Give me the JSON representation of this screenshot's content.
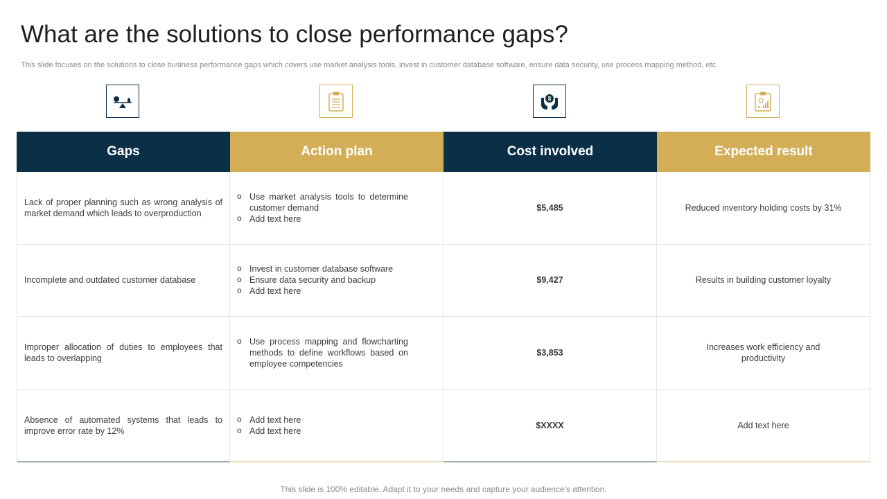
{
  "title": "What are the solutions to close performance gaps?",
  "subtitle": "This slide focuses on the solutions to close business performance gaps which covers use market analysis tools, invest in customer database software, ensure data security, use process mapping method, etc.",
  "icons": [
    "balance-scale-icon",
    "clipboard-icon",
    "hands-holding-coin-icon",
    "chart-report-icon"
  ],
  "headers": [
    "Gaps",
    "Action plan",
    "Cost involved",
    "Expected result"
  ],
  "colors": {
    "navy": "#0b2f46",
    "gold": "#d4ae57"
  },
  "rows": [
    {
      "gap": "Lack of proper planning such as wrong analysis of market demand which leads to overproduction",
      "actions": [
        "Use market analysis tools to determine customer demand",
        "Add text here"
      ],
      "cost": "$5,485",
      "result": "Reduced inventory holding costs by 31%"
    },
    {
      "gap": "Incomplete and outdated customer database",
      "actions": [
        "Invest in customer database software",
        "Ensure data security and backup",
        "Add text here"
      ],
      "cost": "$9,427",
      "result": "Results in building customer loyalty"
    },
    {
      "gap": "Improper allocation of duties to employees that leads to overlapping",
      "actions": [
        "Use process mapping and flowcharting methods to define workflows based on employee competencies"
      ],
      "cost": "$3,853",
      "result": "Increases work efficiency and productivity"
    },
    {
      "gap": "Absence of automated systems that leads to improve error rate by 12%",
      "actions": [
        "Add text here",
        "Add text here"
      ],
      "cost": "$XXXX",
      "result": "Add text here"
    }
  ],
  "footer": "This slide is 100% editable. Adapt it to your needs and capture your audience's attention."
}
